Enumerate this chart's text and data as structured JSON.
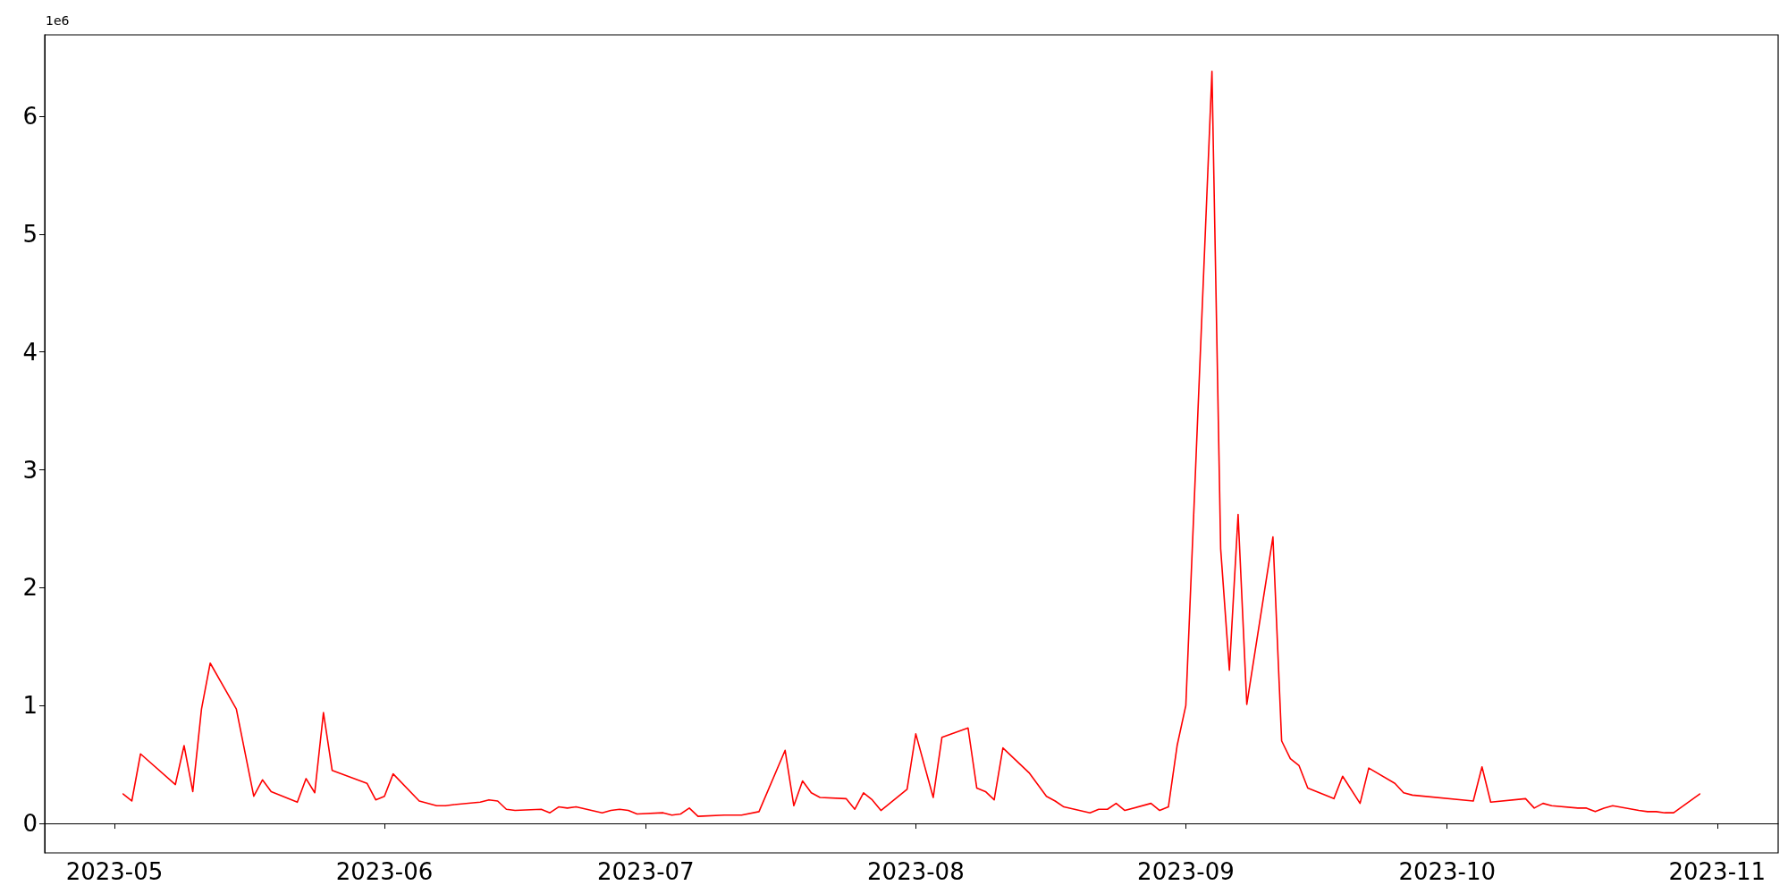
{
  "chart_data": {
    "type": "line",
    "annotations": [
      "1e6"
    ],
    "x": [
      "2023-05-02",
      "2023-05-03",
      "2023-05-04",
      "2023-05-08",
      "2023-05-09",
      "2023-05-10",
      "2023-05-11",
      "2023-05-12",
      "2023-05-15",
      "2023-05-17",
      "2023-05-18",
      "2023-05-19",
      "2023-05-22",
      "2023-05-23",
      "2023-05-24",
      "2023-05-25",
      "2023-05-26",
      "2023-05-30",
      "2023-05-31",
      "2023-06-01",
      "2023-06-02",
      "2023-06-05",
      "2023-06-07",
      "2023-06-08",
      "2023-06-09",
      "2023-06-12",
      "2023-06-13",
      "2023-06-14",
      "2023-06-15",
      "2023-06-16",
      "2023-06-19",
      "2023-06-20",
      "2023-06-21",
      "2023-06-22",
      "2023-06-23",
      "2023-06-26",
      "2023-06-27",
      "2023-06-28",
      "2023-06-29",
      "2023-06-30",
      "2023-07-03",
      "2023-07-04",
      "2023-07-05",
      "2023-07-06",
      "2023-07-07",
      "2023-07-10",
      "2023-07-11",
      "2023-07-12",
      "2023-07-14",
      "2023-07-17",
      "2023-07-18",
      "2023-07-19",
      "2023-07-20",
      "2023-07-21",
      "2023-07-24",
      "2023-07-25",
      "2023-07-26",
      "2023-07-27",
      "2023-07-28",
      "2023-07-31",
      "2023-08-01",
      "2023-08-03",
      "2023-08-04",
      "2023-08-07",
      "2023-08-08",
      "2023-08-09",
      "2023-08-10",
      "2023-08-11",
      "2023-08-14",
      "2023-08-16",
      "2023-08-17",
      "2023-08-18",
      "2023-08-21",
      "2023-08-22",
      "2023-08-23",
      "2023-08-24",
      "2023-08-25",
      "2023-08-28",
      "2023-08-29",
      "2023-08-30",
      "2023-08-31",
      "2023-09-01",
      "2023-09-04",
      "2023-09-05",
      "2023-09-06",
      "2023-09-07",
      "2023-09-08",
      "2023-09-11",
      "2023-09-12",
      "2023-09-13",
      "2023-09-14",
      "2023-09-15",
      "2023-09-18",
      "2023-09-19",
      "2023-09-21",
      "2023-09-22",
      "2023-09-25",
      "2023-09-26",
      "2023-09-27",
      "2023-10-04",
      "2023-10-05",
      "2023-10-06",
      "2023-10-10",
      "2023-10-11",
      "2023-10-12",
      "2023-10-13",
      "2023-10-16",
      "2023-10-17",
      "2023-10-18",
      "2023-10-19",
      "2023-10-20",
      "2023-10-23",
      "2023-10-24",
      "2023-10-25",
      "2023-10-26",
      "2023-10-27",
      "2023-10-30"
    ],
    "series": [
      {
        "color": "#ff0000",
        "values": [
          0.25,
          0.19,
          0.59,
          0.33,
          0.66,
          0.27,
          0.97,
          1.36,
          0.97,
          0.23,
          0.37,
          0.27,
          0.18,
          0.38,
          0.26,
          0.94,
          0.45,
          0.34,
          0.2,
          0.23,
          0.42,
          0.19,
          0.15,
          0.15,
          0.16,
          0.18,
          0.2,
          0.19,
          0.12,
          0.11,
          0.12,
          0.09,
          0.14,
          0.13,
          0.14,
          0.09,
          0.11,
          0.12,
          0.11,
          0.08,
          0.09,
          0.07,
          0.08,
          0.13,
          0.06,
          0.07,
          0.07,
          0.07,
          0.1,
          0.62,
          0.15,
          0.36,
          0.26,
          0.22,
          0.21,
          0.12,
          0.26,
          0.2,
          0.11,
          0.29,
          0.76,
          0.22,
          0.73,
          0.81,
          0.3,
          0.27,
          0.2,
          0.64,
          0.43,
          0.23,
          0.19,
          0.14,
          0.09,
          0.12,
          0.12,
          0.17,
          0.11,
          0.17,
          0.11,
          0.14,
          0.66,
          1.0,
          6.38,
          2.33,
          1.3,
          2.62,
          1.01,
          2.43,
          0.7,
          0.55,
          0.49,
          0.3,
          0.21,
          0.4,
          0.17,
          0.47,
          0.34,
          0.26,
          0.24,
          0.19,
          0.48,
          0.18,
          0.21,
          0.13,
          0.17,
          0.15,
          0.13,
          0.13,
          0.1,
          0.13,
          0.15,
          0.11,
          0.1,
          0.1,
          0.09,
          0.09,
          0.25
        ]
      }
    ],
    "xlim": [
      "2023-04-23",
      "2023-11-08"
    ],
    "xticks": [
      {
        "value": "2023-05-01",
        "label": "2023-05"
      },
      {
        "value": "2023-06-01",
        "label": "2023-06"
      },
      {
        "value": "2023-07-01",
        "label": "2023-07"
      },
      {
        "value": "2023-08-01",
        "label": "2023-08"
      },
      {
        "value": "2023-09-01",
        "label": "2023-09"
      },
      {
        "value": "2023-10-01",
        "label": "2023-10"
      },
      {
        "value": "2023-11-01",
        "label": "2023-11"
      }
    ],
    "ylim": [
      -0.25,
      6.69
    ],
    "yticks": [
      0,
      1,
      2,
      3,
      4,
      5,
      6
    ],
    "marker": "none",
    "line_style": "solid"
  }
}
